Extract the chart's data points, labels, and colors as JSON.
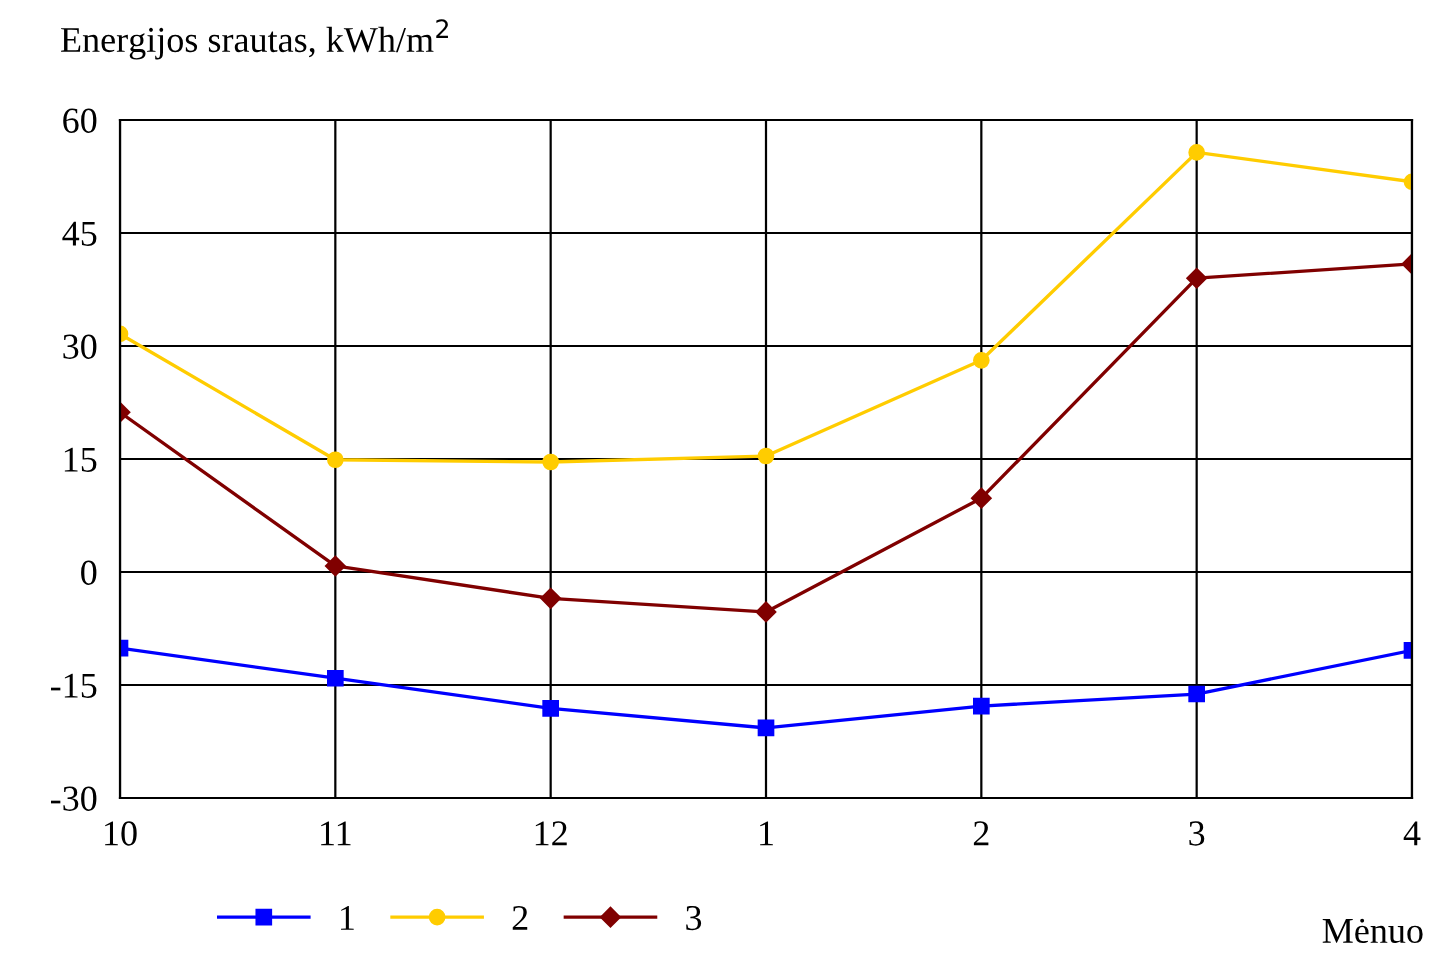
{
  "chart_data": {
    "type": "line",
    "ylabel": "Energijos srautas, kWh/m$^{2}$",
    "xlabel": "Mėnuo",
    "categories": [
      "10",
      "11",
      "12",
      "1",
      "2",
      "3",
      "4"
    ],
    "series": [
      {
        "name": "1",
        "color": "#0000ff",
        "marker": "square",
        "values": [
          -10.1,
          -14.1,
          -18.1,
          -20.7,
          -17.8,
          -16.2,
          -10.4
        ]
      },
      {
        "name": "2",
        "color": "#ffcc00",
        "marker": "circle",
        "values": [
          31.6,
          14.9,
          14.6,
          15.4,
          28.1,
          55.7,
          51.8
        ]
      },
      {
        "name": "3",
        "color": "#800000",
        "marker": "diamond",
        "values": [
          21.2,
          0.8,
          -3.5,
          -5.3,
          9.8,
          39.0,
          40.9
        ]
      }
    ],
    "ylim": [
      -30,
      60
    ],
    "yticks": [
      -30,
      -15,
      0,
      15,
      30,
      45,
      60
    ],
    "grid": true,
    "legend": "bottom left",
    "line_style": "solid"
  }
}
